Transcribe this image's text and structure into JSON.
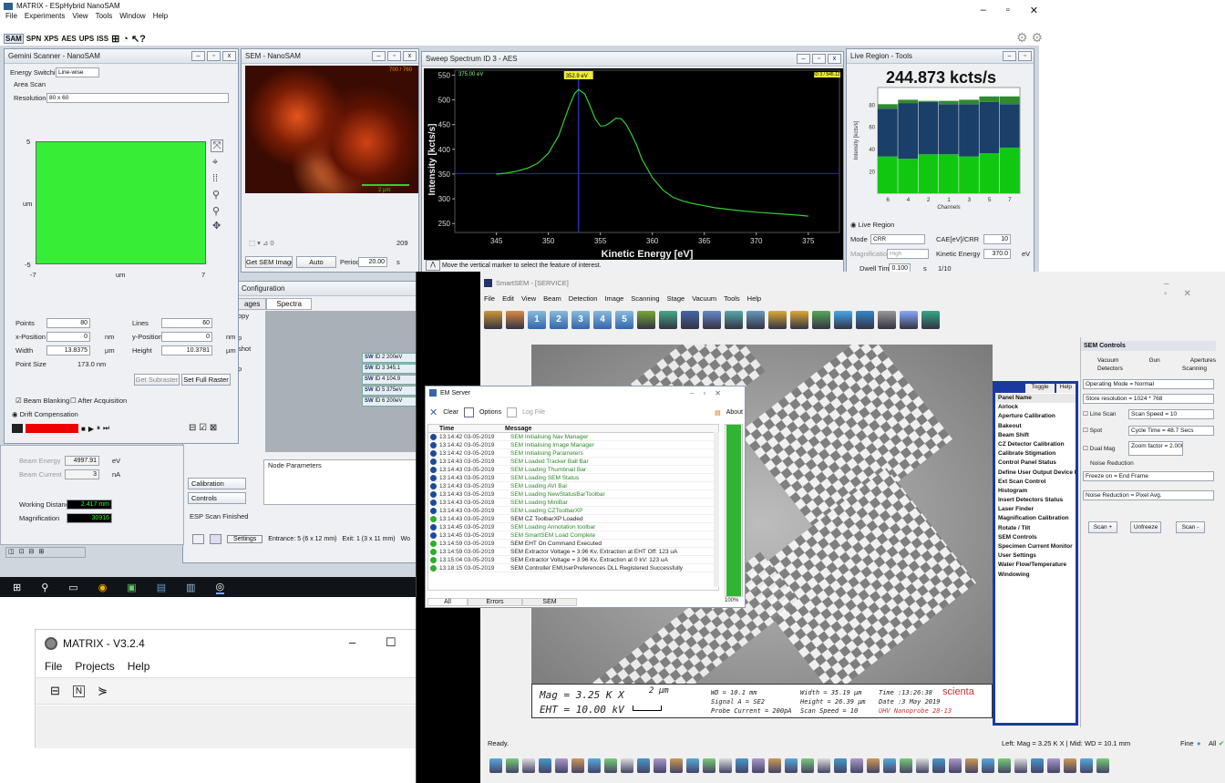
{
  "matrix_main": {
    "title": "MATRIX - ESpHybrid NanoSAM",
    "menu": [
      "File",
      "Experiments",
      "View",
      "Tools",
      "Window",
      "Help"
    ],
    "toolbar": [
      "SAM",
      "SPN",
      "XPS",
      "AES",
      "UPS",
      "ISS"
    ],
    "win_min": "–",
    "win_max": "▫",
    "win_close": "✕"
  },
  "gemini": {
    "title": "Gemini Scanner - NanoSAM",
    "energy_label": "Energy Switching",
    "energy_value": "Line-wise",
    "area_scan": "Area Scan",
    "resolution_label": "Resolution",
    "resolution_value": "80 x 60",
    "y_max": "5",
    "y_min": "-5",
    "y_unit": "um",
    "x_min": "-7",
    "x_unit": "um",
    "x_max": "7",
    "points_label": "Points",
    "points_value": "80",
    "lines_label": "Lines",
    "lines_value": "60",
    "xpos_label": "x-Position",
    "xpos_value": "0",
    "xpos_unit": "nm",
    "ypos_label": "y-Position",
    "ypos_value": "0",
    "ypos_unit": "nm",
    "width_label": "Width",
    "width_value": "13.8375",
    "width_unit": "µm",
    "height_label": "Height",
    "height_value": "10.3781",
    "height_unit": "µm",
    "pointsize_label": "Point Size",
    "pointsize_value": "173.0 nm",
    "get_subraster": "Get Subraster",
    "set_full_raster": "Set Full Raster",
    "beam_blanking": "Beam Blanking",
    "after_acq": "After Acquisition",
    "drift": "Drift Compensation",
    "proceed": "Proceed"
  },
  "sem": {
    "title": "SEM - NanoSAM",
    "counter": "700 / 760",
    "scalebar": "2 µm",
    "count": "209",
    "get_sem": "Get SEM Image",
    "auto": "Auto",
    "period_label": "Period",
    "period_value": "20.00",
    "period_unit": "s"
  },
  "spectrum": {
    "title": "Sweep Spectrum ID 3 - AES",
    "energy_tag": "375.00 eV",
    "marker_tag": "352.9 eV",
    "right_tag": "ID 3 / 545.12",
    "hint": "Move the vertical marker to select the feature of interest."
  },
  "live_region": {
    "title": "Live Region - Tools",
    "rate": "244.873 kcts/s",
    "ylabel": "Intensity [kcts/s]",
    "xlabel": "Channels",
    "section": "Live Region",
    "mode_label": "Mode",
    "mode_value": "CRR",
    "cae_label": "CAE[eV]/CRR",
    "cae_value": "10",
    "mag_label": "Magnification",
    "mag_value": "High",
    "ke_label": "Kinetic Energy",
    "ke_value": "370.0",
    "ke_unit": "eV",
    "dwell_label": "Dwell Time",
    "dwell_value": "0.100",
    "dwell_unit": "s",
    "dwell_ratio": "1/10"
  },
  "config": {
    "title": "Configuration",
    "tab_images": "ages",
    "tab_spectra": "Spectra",
    "copy": "opy",
    "shot": "shot",
    "p1": "p",
    "p2": "p",
    "sweep_rows": [
      {
        "tag": "SW",
        "id": "ID 2",
        "v": "200eV"
      },
      {
        "tag": "SW",
        "id": "ID 3",
        "v": "345.1"
      },
      {
        "tag": "SW",
        "id": "ID 4",
        "v": "104.9"
      },
      {
        "tag": "SW",
        "id": "ID 5",
        "v": "375eV"
      },
      {
        "tag": "SW",
        "id": "ID 6",
        "v": "200eV"
      }
    ],
    "node_params": "Node Parameters",
    "calibration": "Calibration",
    "controls": "Controls",
    "esp_finished": "ESP Scan Finished",
    "settings": "Settings",
    "entrance": "Entrance: 5 (6 x 12 mm)",
    "exit": "Exit: 1 (3 x 11 mm)",
    "wo": "Wo"
  },
  "beam": {
    "energy_label": "Beam Energy",
    "energy_value": "4997.91",
    "energy_unit": "eV",
    "current_label": "Beam Current",
    "current_value": "3",
    "current_unit": "nA",
    "wd_label": "Working Distance",
    "wd_value": "2.417 mm",
    "mag_label": "Magnification",
    "mag_value": "30916"
  },
  "taskbar": {
    "sam_tab": "SAM"
  },
  "matrix_v3": {
    "title": "MATRIX - V3.2.4",
    "menu": [
      "File",
      "Projects",
      "Help"
    ],
    "min": "–",
    "max": "☐"
  },
  "smartsem": {
    "title": "SmartSEM - [SERVICE]",
    "menu": [
      "File",
      "Edit",
      "View",
      "Beam",
      "Detection",
      "Image",
      "Scanning",
      "Stage",
      "Vacuum",
      "Tools",
      "Help"
    ],
    "tb_numbers": [
      "1",
      "2",
      "3",
      "4",
      "5"
    ],
    "status": "Ready.",
    "status_right": "Left: Mag = 3.25 K X | Mid: WD = 10.1 mm",
    "fine": "Fine",
    "all": "All"
  },
  "databar": {
    "mag": "Mag =     3.25 K X",
    "um": "2 µm",
    "eht": "EHT = 10.00 kV",
    "wd": "WD = 10.1 mm",
    "signal": "Signal A = SE2",
    "probe": "Probe Current = 200pA",
    "width": "Width = 35.19 µm",
    "height": "Height = 26.39 µm",
    "scan": "Scan Speed = 10",
    "time": "Time :13:26:38",
    "date": "Date :3 May 2019",
    "brand": "scienta",
    "device": "UHV Nanoprobe 28-13"
  },
  "em_server": {
    "title": "EM Server",
    "clear": "Clear",
    "options": "Options",
    "log_file": "Log File",
    "about": "About",
    "col_time": "Time",
    "col_msg": "Message",
    "rows": [
      {
        "t": "13:14:42 03-05-2019",
        "m": "SEM Initialising Nav Manager",
        "s": "info"
      },
      {
        "t": "13:14:42 03-05-2019",
        "m": "SEM Initialising Image Manager",
        "s": "info"
      },
      {
        "t": "13:14:42 03-05-2019",
        "m": "SEM Initialising Parameters",
        "s": "info"
      },
      {
        "t": "13:14:43 03-05-2019",
        "m": "SEM Loaded Tracker Ball Bar",
        "s": "info"
      },
      {
        "t": "13:14:43 03-05-2019",
        "m": "SEM Loading Thumbnail Bar",
        "s": "info"
      },
      {
        "t": "13:14:43 03-05-2019",
        "m": "SEM Loading SEM Status",
        "s": "info"
      },
      {
        "t": "13:14:43 03-05-2019",
        "m": "SEM Loading AVI Bar",
        "s": "info"
      },
      {
        "t": "13:14:43 03-05-2019",
        "m": "SEM Loading NewStatusBarToolbar",
        "s": "info"
      },
      {
        "t": "13:14:43 03-05-2019",
        "m": "SEM Loading MiniBar",
        "s": "info"
      },
      {
        "t": "13:14:43 03-05-2019",
        "m": "SEM Loading CZToolbarXP",
        "s": "info"
      },
      {
        "t": "13:14:43 03-05-2019",
        "m": "SEM CZ ToolbarXP Loaded",
        "s": "ok"
      },
      {
        "t": "13:14:45 03-05-2019",
        "m": "SEM Loading Annotation toolbar",
        "s": "info"
      },
      {
        "t": "13:14:45 03-05-2019",
        "m": "SEM SmartSEM Load Complete",
        "s": "info"
      },
      {
        "t": "13:14:59 03-05-2019",
        "m": "SEM EHT On Command Executed",
        "s": "ok"
      },
      {
        "t": "13:14:59 03-05-2019",
        "m": "SEM Extractor Voltage = 3.96 Kv, Extraction at EHT Off: 123 uA",
        "s": "ok"
      },
      {
        "t": "13:15:04 03-05-2019",
        "m": "SEM Extractor Voltage = 3.96 Kv, Extraction at 0 kV: 123 uA",
        "s": "ok"
      },
      {
        "t": "13:18:15 03-05-2019",
        "m": "SEM Controller EMUserPreferences DLL Registered Successfully",
        "s": "ok"
      }
    ],
    "pct": "100%",
    "tab_all": "All",
    "tab_errors": "Errors",
    "tab_sem": "SEM"
  },
  "panel": {
    "toggle": "Toggle",
    "help": "Help",
    "items": [
      "Panel Name",
      "Airlock",
      "Aperture Calibration",
      "Bakeout",
      "Beam Shift",
      "CZ Detector Calibration",
      "Calibrate Stigmation",
      "Control Panel Status",
      "Define User Output Device M",
      "Ext Scan Control",
      "Histogram",
      "Insert Detectors Status",
      "Laser Finder",
      "Magnification Calibration",
      "Rotate / Tilt",
      "SEM Controls",
      "Specimen Current Monitor",
      "User Settings",
      "Water Flow/Temperature",
      "Windowing"
    ]
  },
  "sem_controls": {
    "title": "SEM Controls",
    "tabs_top": [
      "Vacuum",
      "Gun",
      "Apertures"
    ],
    "tabs_bottom": [
      "Detectors",
      "Scanning"
    ],
    "op_mode": "Operating Mode = Normal",
    "store_res": "Store resolution = 1024 * 768",
    "line_scan": "Line Scan",
    "scan_speed": "Scan Speed = 10",
    "spot": "Spot",
    "cycle_time": "Cycle Time = 48.7 Secs",
    "dual_mag": "Dual Mag",
    "zoom": "Zoom factor = 2.000",
    "noise_title": "Noise Reduction",
    "freeze_on": "Freeze on = End Frame",
    "noise_red": "Noise Reduction = Pixel Avg.",
    "scan_plus": "Scan +",
    "unfreeze": "Unfreeze",
    "scan_minus": "Scan -"
  },
  "chart_data": [
    {
      "type": "line",
      "title": "",
      "xlabel": "Kinetic Energy [eV]",
      "ylabel": "Intensity [kcts/s]",
      "xlim": [
        341,
        378
      ],
      "ylim": [
        232,
        560
      ],
      "xticks": [
        345,
        350,
        355,
        360,
        365,
        370,
        375
      ],
      "yticks": [
        250,
        300,
        350,
        400,
        450,
        500,
        550
      ],
      "grid": false,
      "marker_x": 352.9,
      "x": [
        345,
        346,
        347,
        348,
        349,
        350,
        351,
        351.5,
        352,
        352.5,
        352.9,
        353.5,
        354,
        354.5,
        355,
        355.5,
        356,
        356.5,
        357,
        357.5,
        358,
        358.5,
        359,
        360,
        361,
        362,
        363,
        364,
        365,
        366,
        368,
        370,
        372,
        374,
        375
      ],
      "y": [
        350,
        352,
        356,
        362,
        372,
        392,
        428,
        458,
        487,
        512,
        521,
        512,
        488,
        462,
        447,
        448,
        455,
        463,
        462,
        450,
        430,
        408,
        380,
        343,
        318,
        303,
        295,
        290,
        286,
        282,
        277,
        273,
        270,
        267,
        265
      ]
    },
    {
      "type": "bar",
      "title": "",
      "xlabel": "Channels",
      "ylabel": "Intensity [kcts/s]",
      "ylim": [
        0,
        95
      ],
      "categories": [
        "6",
        "4",
        "2",
        "1",
        "3",
        "5",
        "7"
      ],
      "series": [
        {
          "name": "",
          "values": [
            33,
            31,
            35,
            35,
            33,
            36,
            41
          ]
        },
        {
          "name": "",
          "values": [
            43,
            50,
            47,
            45,
            47,
            46,
            39
          ]
        },
        {
          "name": "",
          "values": [
            4,
            3,
            1,
            3,
            4,
            5,
            7
          ]
        }
      ],
      "colors": [
        "#11c811",
        "#1a3f68",
        "#2e8b2e"
      ]
    }
  ]
}
